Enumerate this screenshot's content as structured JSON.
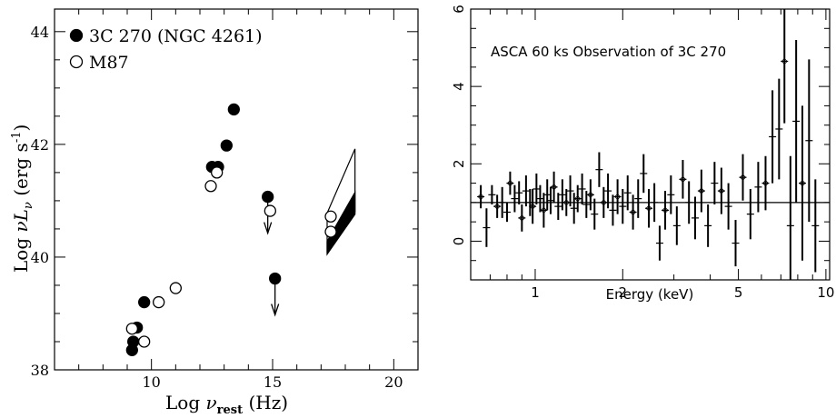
{
  "chart_data": [
    {
      "type": "scatter",
      "xlabel": "Log ν_rest (Hz)",
      "xlabel_main": "Log ",
      "xlabel_symbol": "ν",
      "xlabel_sub": "rest",
      "xlabel_unit": " (Hz)",
      "ylabel": "Log νL_ν (erg s^-1)",
      "ylabel_main": "Log ",
      "ylabel_symbol": "νL",
      "ylabel_sub": "ν",
      "ylabel_unit": " (erg s",
      "ylabel_sup": "-1",
      "ylabel_close": ")",
      "xlim": [
        6,
        21
      ],
      "ylim": [
        38,
        44.4
      ],
      "x_ticks": [
        "10",
        "15",
        "20"
      ],
      "y_ticks": [
        "38",
        "40",
        "42",
        "44"
      ],
      "legend_position": "top-left",
      "series": [
        {
          "name": "3C 270 (NGC 4261)",
          "marker": "filled-circle",
          "points": [
            {
              "x": 9.2,
              "y": 38.35
            },
            {
              "x": 9.25,
              "y": 38.5
            },
            {
              "x": 9.4,
              "y": 38.75
            },
            {
              "x": 9.7,
              "y": 39.2
            },
            {
              "x": 12.5,
              "y": 41.6
            },
            {
              "x": 12.75,
              "y": 41.6
            },
            {
              "x": 13.1,
              "y": 41.98
            },
            {
              "x": 13.4,
              "y": 42.62
            }
          ],
          "upper_limits": [
            {
              "x": 14.8,
              "y": 41.07
            },
            {
              "x": 15.1,
              "y": 39.62
            }
          ]
        },
        {
          "name": "M87",
          "marker": "open-circle",
          "points": [
            {
              "x": 9.2,
              "y": 38.73
            },
            {
              "x": 9.7,
              "y": 38.5
            },
            {
              "x": 10.3,
              "y": 39.2
            },
            {
              "x": 11.0,
              "y": 39.45
            },
            {
              "x": 12.45,
              "y": 41.26
            },
            {
              "x": 12.7,
              "y": 41.5
            },
            {
              "x": 14.9,
              "y": 40.82
            },
            {
              "x": 17.4,
              "y": 40.72
            },
            {
              "x": 17.4,
              "y": 40.45
            }
          ]
        }
      ],
      "xray_bowties": [
        {
          "fill": "open",
          "x0": 17.25,
          "x1": 18.4,
          "y0_low": 40.1,
          "y0_high": 40.78,
          "y1_low": 40.8,
          "y1_high": 41.92
        },
        {
          "fill": "filled",
          "x0": 17.25,
          "x1": 18.4,
          "y0_low": 40.05,
          "y0_high": 40.28,
          "y1_low": 40.76,
          "y1_high": 41.15
        }
      ]
    },
    {
      "type": "scatter",
      "title": "ASCA 60 ks Observation of 3C 270",
      "xlabel": "Energy (keV)",
      "ylabel": "",
      "xscale": "log",
      "xlim": [
        0.6,
        10.3
      ],
      "ylim": [
        -1,
        6
      ],
      "x_ticks": [
        "1",
        "2",
        "5",
        "10"
      ],
      "y_ticks": [
        "0",
        "2",
        "4",
        "6"
      ],
      "reference_line_y": 1,
      "series": [
        {
          "name": "",
          "points": [
            {
              "x": 0.65,
              "y": 1.15,
              "err": 0.3
            },
            {
              "x": 0.68,
              "y": 0.35,
              "err": 0.5
            },
            {
              "x": 0.71,
              "y": 1.2,
              "err": 0.25
            },
            {
              "x": 0.74,
              "y": 0.9,
              "err": 0.3
            },
            {
              "x": 0.77,
              "y": 1.0,
              "err": 0.4
            },
            {
              "x": 0.8,
              "y": 0.75,
              "err": 0.25
            },
            {
              "x": 0.82,
              "y": 1.5,
              "err": 0.3
            },
            {
              "x": 0.85,
              "y": 1.1,
              "err": 0.35
            },
            {
              "x": 0.88,
              "y": 1.25,
              "err": 0.3
            },
            {
              "x": 0.9,
              "y": 0.6,
              "err": 0.35
            },
            {
              "x": 0.93,
              "y": 1.3,
              "err": 0.4
            },
            {
              "x": 0.96,
              "y": 1.0,
              "err": 0.35
            },
            {
              "x": 0.98,
              "y": 0.9,
              "err": 0.45
            },
            {
              "x": 1.01,
              "y": 1.35,
              "err": 0.4
            },
            {
              "x": 1.04,
              "y": 1.1,
              "err": 0.35
            },
            {
              "x": 1.07,
              "y": 0.8,
              "err": 0.45
            },
            {
              "x": 1.1,
              "y": 1.2,
              "err": 0.4
            },
            {
              "x": 1.13,
              "y": 1.05,
              "err": 0.35
            },
            {
              "x": 1.16,
              "y": 1.4,
              "err": 0.4
            },
            {
              "x": 1.2,
              "y": 0.9,
              "err": 0.35
            },
            {
              "x": 1.24,
              "y": 1.2,
              "err": 0.4
            },
            {
              "x": 1.28,
              "y": 1.0,
              "err": 0.35
            },
            {
              "x": 1.32,
              "y": 1.3,
              "err": 0.4
            },
            {
              "x": 1.36,
              "y": 0.85,
              "err": 0.4
            },
            {
              "x": 1.4,
              "y": 1.1,
              "err": 0.35
            },
            {
              "x": 1.45,
              "y": 1.35,
              "err": 0.4
            },
            {
              "x": 1.5,
              "y": 0.95,
              "err": 0.35
            },
            {
              "x": 1.55,
              "y": 1.2,
              "err": 0.4
            },
            {
              "x": 1.6,
              "y": 0.7,
              "err": 0.4
            },
            {
              "x": 1.66,
              "y": 1.85,
              "err": 0.45
            },
            {
              "x": 1.72,
              "y": 1.0,
              "err": 0.4
            },
            {
              "x": 1.78,
              "y": 1.3,
              "err": 0.45
            },
            {
              "x": 1.85,
              "y": 0.8,
              "err": 0.4
            },
            {
              "x": 1.92,
              "y": 1.15,
              "err": 0.45
            },
            {
              "x": 2.0,
              "y": 0.9,
              "err": 0.45
            },
            {
              "x": 2.08,
              "y": 1.25,
              "err": 0.45
            },
            {
              "x": 2.17,
              "y": 0.75,
              "err": 0.45
            },
            {
              "x": 2.26,
              "y": 1.1,
              "err": 0.5
            },
            {
              "x": 2.36,
              "y": 1.75,
              "err": 0.5
            },
            {
              "x": 2.46,
              "y": 0.85,
              "err": 0.5
            },
            {
              "x": 2.57,
              "y": 1.0,
              "err": 0.5
            },
            {
              "x": 2.68,
              "y": -0.05,
              "err": 0.45
            },
            {
              "x": 2.8,
              "y": 0.8,
              "err": 0.5
            },
            {
              "x": 2.93,
              "y": 1.2,
              "err": 0.5
            },
            {
              "x": 3.07,
              "y": 0.4,
              "err": 0.5
            },
            {
              "x": 3.22,
              "y": 1.6,
              "err": 0.5
            },
            {
              "x": 3.38,
              "y": 1.0,
              "err": 0.55
            },
            {
              "x": 3.55,
              "y": 0.6,
              "err": 0.55
            },
            {
              "x": 3.73,
              "y": 1.3,
              "err": 0.55
            },
            {
              "x": 3.93,
              "y": 0.4,
              "err": 0.55
            },
            {
              "x": 4.14,
              "y": 1.5,
              "err": 0.55
            },
            {
              "x": 4.37,
              "y": 1.3,
              "err": 0.6
            },
            {
              "x": 4.62,
              "y": 0.9,
              "err": 0.6
            },
            {
              "x": 4.89,
              "y": -0.05,
              "err": 0.6
            },
            {
              "x": 5.18,
              "y": 1.65,
              "err": 0.6
            },
            {
              "x": 5.5,
              "y": 0.7,
              "err": 0.65
            },
            {
              "x": 5.85,
              "y": 1.4,
              "err": 0.65
            },
            {
              "x": 6.2,
              "y": 1.5,
              "err": 0.7
            },
            {
              "x": 6.55,
              "y": 2.7,
              "err": 1.2
            },
            {
              "x": 6.9,
              "y": 2.9,
              "err": 1.3
            },
            {
              "x": 7.2,
              "y": 4.65,
              "err": 1.6
            },
            {
              "x": 7.55,
              "y": 0.4,
              "err": 1.8
            },
            {
              "x": 7.9,
              "y": 3.1,
              "err": 2.1
            },
            {
              "x": 8.3,
              "y": 1.5,
              "err": 2.0
            },
            {
              "x": 8.75,
              "y": 2.6,
              "err": 2.1
            },
            {
              "x": 9.2,
              "y": 0.4,
              "err": 1.2
            }
          ]
        }
      ]
    }
  ]
}
